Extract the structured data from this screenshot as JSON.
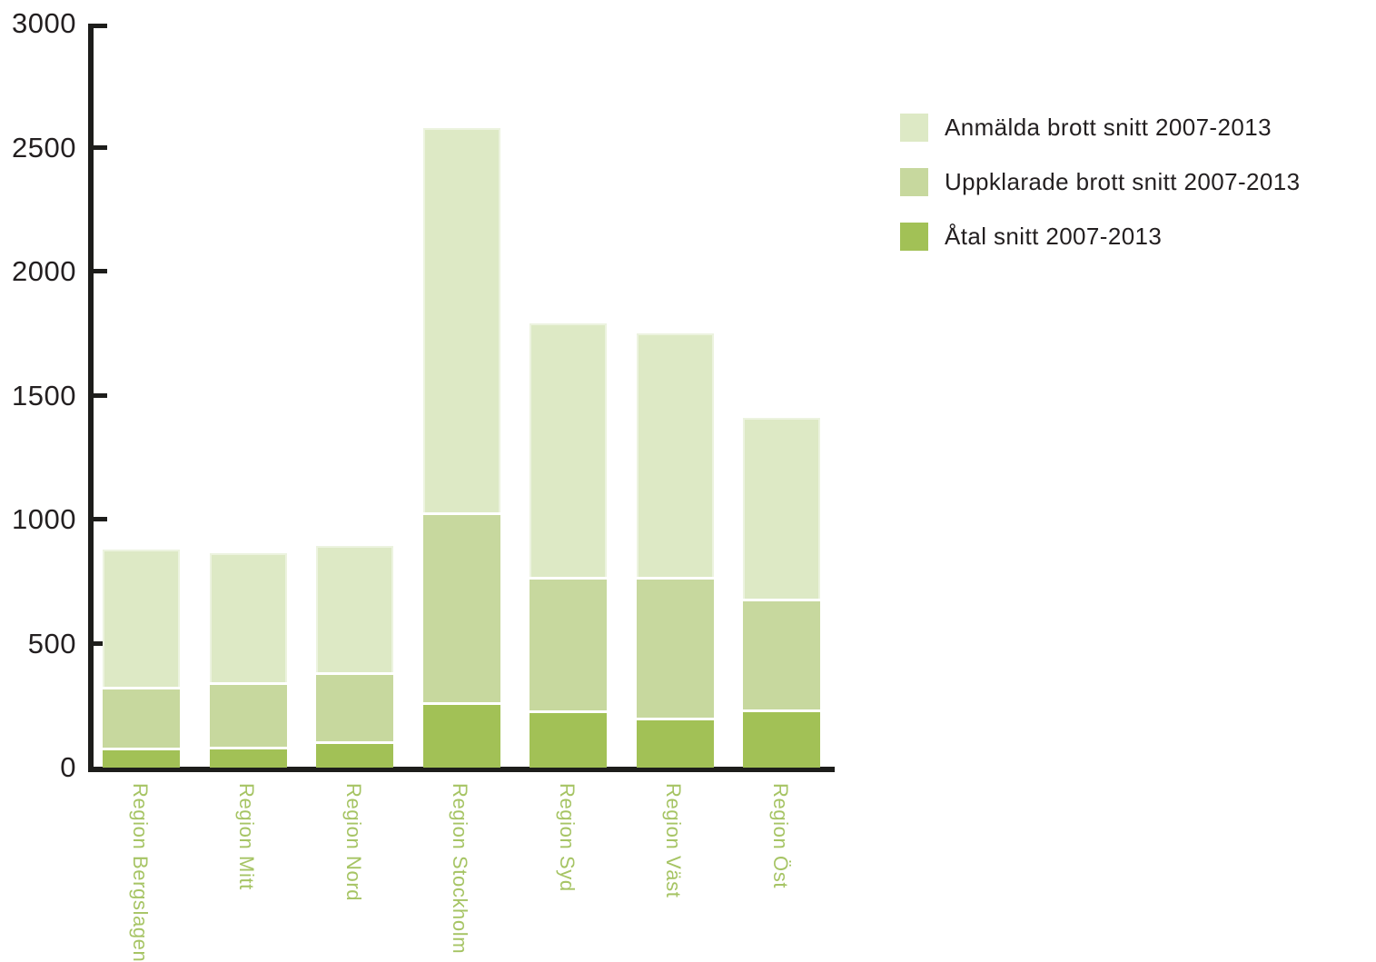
{
  "chart_data": {
    "type": "bar",
    "variant": "overlay-stacked-vertical",
    "title": "",
    "xlabel": "",
    "ylabel": "",
    "categories": [
      "Region Bergslagen",
      "Region Mitt",
      "Region Nord",
      "Region Stockholm",
      "Region Syd",
      "Region Väst",
      "Region Öst"
    ],
    "series": [
      {
        "key": "anmalda",
        "name": "Anmälda brott snitt 2007-2013",
        "color": "#dde9c5",
        "values": [
          880,
          865,
          895,
          2580,
          1790,
          1750,
          1410
        ]
      },
      {
        "key": "uppklarade",
        "name": "Uppklarade brott snitt 2007-2013",
        "color": "#c7d89e",
        "values": [
          325,
          345,
          385,
          1030,
          770,
          770,
          680
        ]
      },
      {
        "key": "atal",
        "name": "Åtal snitt 2007-2013",
        "color": "#a2c156",
        "values": [
          80,
          85,
          105,
          265,
          230,
          200,
          235
        ]
      }
    ],
    "ylim": [
      0,
      3000
    ],
    "yticks": [
      0,
      500,
      1000,
      1500,
      2000,
      2500,
      3000
    ],
    "ytick_labels": [
      "0",
      "500",
      "1000",
      "1500",
      "2000",
      "2500",
      "3000"
    ],
    "grid": false,
    "legend_position": "upper right"
  },
  "style_colors": {
    "axis": "#1d1d1b",
    "tick_label_text": "#231f20",
    "legend_text": "#231f20",
    "category_label_text": "#a6c464",
    "background": "#ffffff"
  }
}
